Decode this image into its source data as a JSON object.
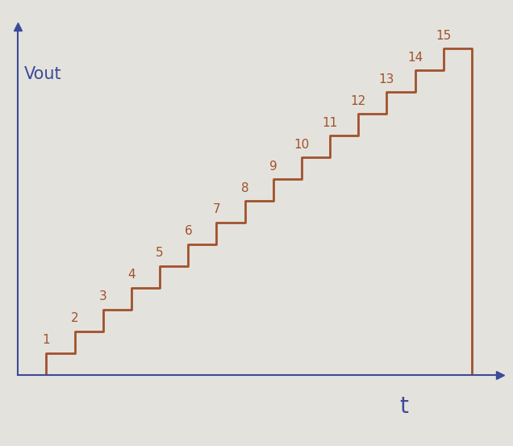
{
  "chart_data": {
    "type": "step",
    "xlabel": "t",
    "ylabel": "Vout",
    "x": [
      1,
      2,
      3,
      4,
      5,
      6,
      7,
      8,
      9,
      10,
      11,
      12,
      13,
      14,
      15
    ],
    "values": [
      1,
      2,
      3,
      4,
      5,
      6,
      7,
      8,
      9,
      10,
      11,
      12,
      13,
      14,
      15
    ],
    "color": "#a0522d",
    "xlim": [
      0,
      17
    ],
    "ylim": [
      0,
      16
    ],
    "data_labels": true,
    "tick_labels": false,
    "grid": false
  }
}
